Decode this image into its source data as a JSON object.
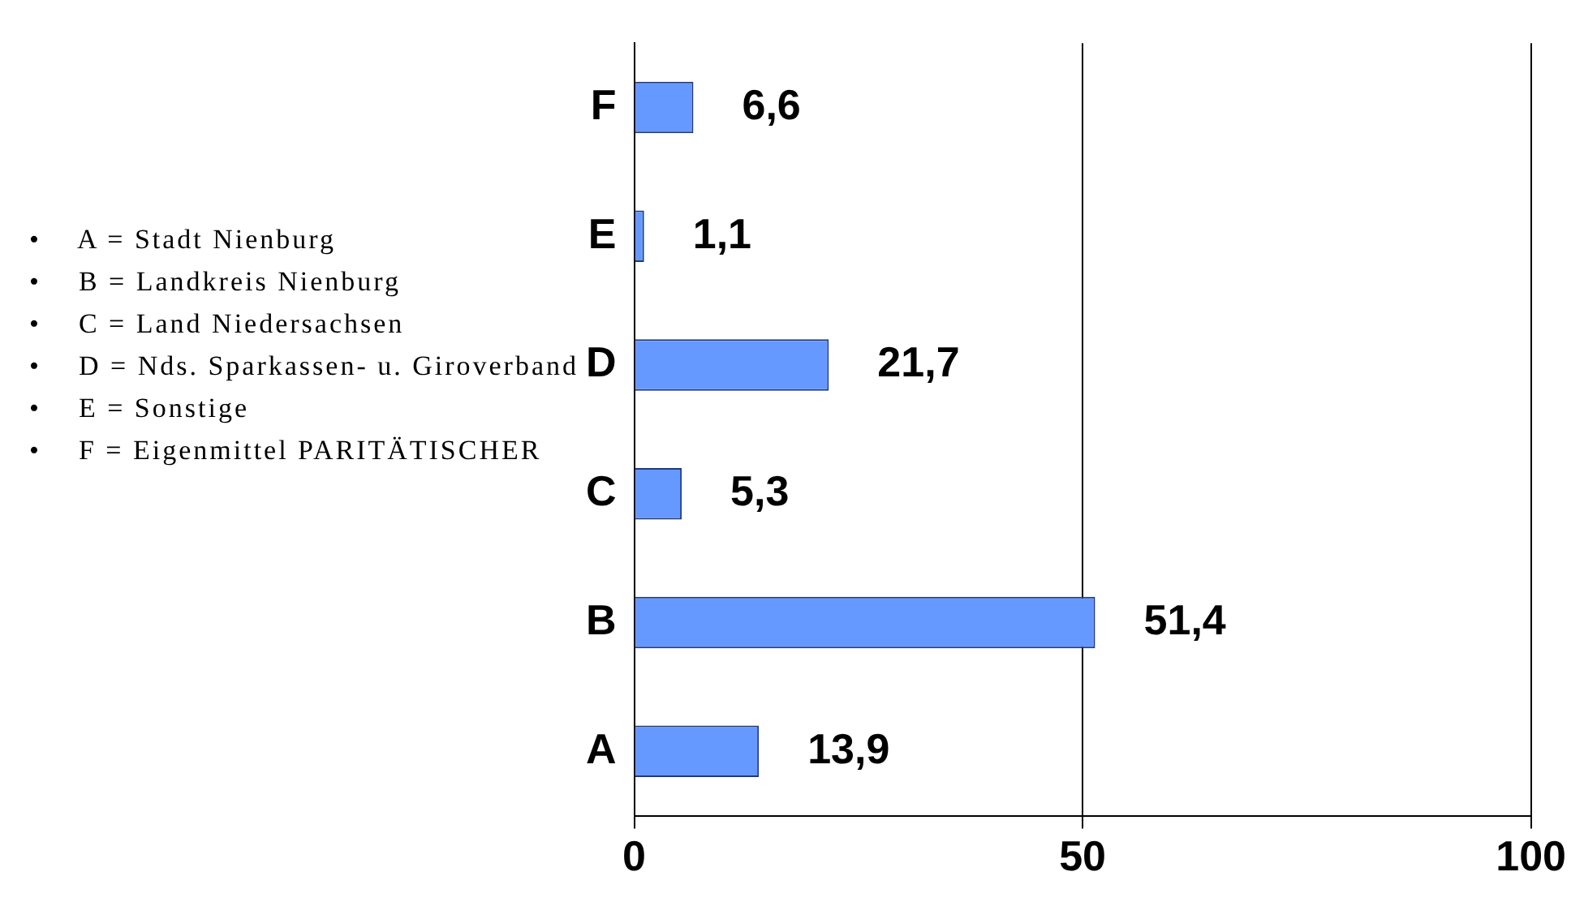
{
  "chart_data": {
    "type": "bar",
    "orientation": "horizontal",
    "categories": [
      "F",
      "E",
      "D",
      "C",
      "B",
      "A"
    ],
    "values": [
      6.6,
      1.1,
      21.7,
      5.3,
      51.4,
      13.9
    ],
    "value_labels": [
      "6,6",
      "1,1",
      "21,7",
      "5,3",
      "51,4",
      "13,9"
    ],
    "color": "#6699ff",
    "xlim": [
      0,
      100
    ],
    "xticks": [
      0,
      50,
      100
    ],
    "grid": "x",
    "legend": false,
    "annotations": [
      "•    A = Stadt Nienburg",
      "•    B = Landkreis Nienburg",
      "•    C = Land Niedersachsen",
      "•    D = Nds. Sparkassen- u. Giroverband",
      "•    E = Sonstige",
      "•    F = Eigenmittel PARITÄTISCHER"
    ]
  }
}
